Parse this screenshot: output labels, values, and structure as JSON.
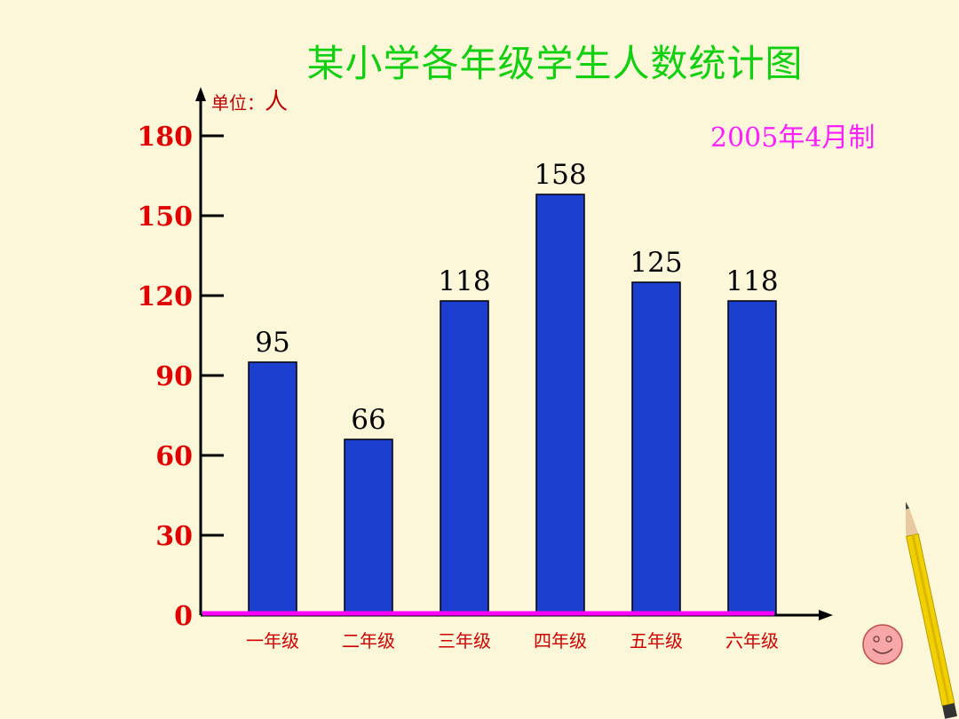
{
  "chart_data": {
    "type": "bar",
    "title": "某小学各年级学生人数统计图",
    "unit_label": "单位：",
    "unit_value": "人",
    "note": "2005年4月制",
    "categories": [
      "一年级",
      "二年级",
      "三年级",
      "四年级",
      "五年级",
      "六年级"
    ],
    "values": [
      95,
      66,
      118,
      158,
      125,
      118
    ],
    "y_ticks": [
      "0",
      "30",
      "60",
      "90",
      "120",
      "150",
      "180"
    ],
    "ylim": [
      0,
      180
    ],
    "colors": {
      "bar": "#1c3fcf",
      "axis_baseline": "#ff00ff",
      "tick_label": "#e00000",
      "title": "#10d010"
    }
  }
}
